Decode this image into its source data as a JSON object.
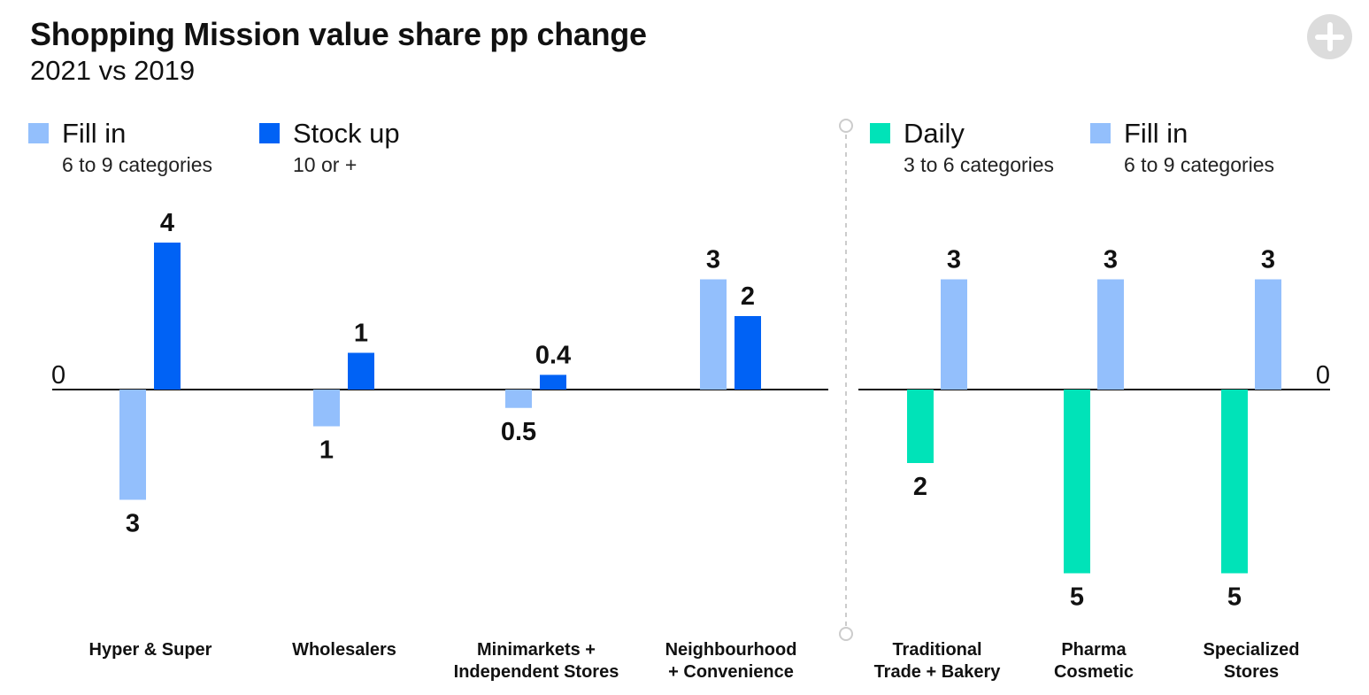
{
  "header": {
    "title": "Shopping Mission value share pp change",
    "subtitle": "2021 vs 2019",
    "expand_icon": "plus-circle-icon"
  },
  "colors": {
    "fill_in": "#93bffc",
    "stock_up": "#0062f5",
    "daily": "#00e3b8",
    "axis": "#111111",
    "divider": "#cccccc"
  },
  "legend_left": [
    {
      "name": "Fill in",
      "sub": "6 to 9 categories",
      "color": "#93bffc"
    },
    {
      "name": "Stock up",
      "sub": "10 or +",
      "color": "#0062f5"
    }
  ],
  "legend_right": [
    {
      "name": "Daily",
      "sub": "3 to 6 categories",
      "color": "#00e3b8"
    },
    {
      "name": "Fill in",
      "sub": "6 to 9 categories",
      "color": "#93bffc"
    }
  ],
  "chart_data": [
    {
      "type": "bar",
      "zero_label": "0",
      "ylim": [
        -5,
        5
      ],
      "grid": false,
      "categories": [
        [
          "Hyper & Super"
        ],
        [
          "Wholesalers"
        ],
        [
          "Minimarkets +",
          "Independent Stores"
        ],
        [
          "Neighbourhood",
          "+ Convenience"
        ]
      ],
      "series": [
        {
          "name": "Fill in",
          "color": "#93bffc",
          "values": [
            -3,
            -1,
            -0.5,
            3
          ],
          "labels": [
            "3",
            "1",
            "0.5",
            "3"
          ]
        },
        {
          "name": "Stock up",
          "color": "#0062f5",
          "values": [
            4,
            1,
            0.4,
            2
          ],
          "labels": [
            "4",
            "1",
            "0.4",
            "2"
          ]
        }
      ]
    },
    {
      "type": "bar",
      "zero_label": "0",
      "ylim": [
        -5,
        5
      ],
      "grid": false,
      "categories": [
        [
          "Traditional",
          "Trade + Bakery"
        ],
        [
          "Pharma",
          "Cosmetic"
        ],
        [
          "Specialized",
          "Stores"
        ]
      ],
      "series": [
        {
          "name": "Daily",
          "color": "#00e3b8",
          "values": [
            -2,
            -5,
            -5
          ],
          "labels": [
            "2",
            "5",
            "5"
          ]
        },
        {
          "name": "Fill in",
          "color": "#93bffc",
          "values": [
            3,
            3,
            3
          ],
          "labels": [
            "3",
            "3",
            "3"
          ]
        }
      ]
    }
  ]
}
